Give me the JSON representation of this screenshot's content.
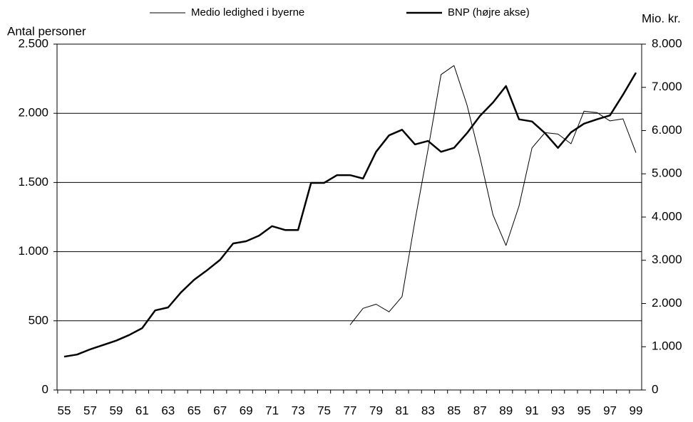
{
  "chart_data": {
    "type": "line",
    "y_label": "Antal personer",
    "y2_label": "Mio. kr.",
    "categories": [
      "55",
      null,
      "57",
      null,
      "59",
      null,
      "61",
      null,
      "63",
      null,
      "65",
      null,
      "67",
      null,
      "69",
      null,
      "71",
      null,
      "73",
      null,
      "75",
      null,
      "77",
      null,
      "79",
      null,
      "81",
      null,
      "83",
      null,
      "85",
      null,
      "87",
      null,
      "89",
      null,
      "91",
      null,
      "93",
      null,
      "95",
      null,
      "97",
      null,
      "99"
    ],
    "series": [
      {
        "name": "Medio ledighed i byerne",
        "color": "#000000",
        "width": 1,
        "values": [
          null,
          null,
          null,
          null,
          null,
          null,
          null,
          null,
          null,
          null,
          null,
          null,
          null,
          null,
          null,
          null,
          null,
          null,
          null,
          null,
          null,
          null,
          470,
          590,
          620,
          565,
          675,
          1225,
          1740,
          2280,
          2345,
          2060,
          1680,
          1265,
          1045,
          1330,
          1750,
          1860,
          1850,
          1780,
          2015,
          2005,
          1945,
          1960,
          1715
        ]
      },
      {
        "name": "BNP (højre akse)",
        "color": "#000000",
        "width": 2.5,
        "axis": "y2",
        "values": [
          770,
          820,
          940,
          1040,
          1140,
          1270,
          1430,
          1840,
          1910,
          2260,
          2550,
          2770,
          3010,
          3390,
          3440,
          3570,
          3790,
          3700,
          3700,
          4790,
          4790,
          4970,
          4970,
          4890,
          5510,
          5890,
          6020,
          5680,
          5760,
          5510,
          5600,
          5940,
          6340,
          6650,
          7030,
          6260,
          6210,
          5940,
          5600,
          5960,
          6160,
          6260,
          6350,
          6830,
          7340
        ]
      }
    ],
    "ylim": [
      0,
      2500
    ],
    "yticks": [
      0,
      500,
      {
        "value": 1000,
        "label": "1.000"
      },
      {
        "value": 1500,
        "label": "1.500"
      },
      {
        "value": 2000,
        "label": "2.000"
      },
      {
        "value": 2500,
        "label": "2.500"
      }
    ],
    "y2lim": [
      0,
      8000
    ],
    "y2ticks": [
      0,
      {
        "value": 1000,
        "label": "1.000"
      },
      {
        "value": 2000,
        "label": "2.000"
      },
      {
        "value": 3000,
        "label": "3.000"
      },
      {
        "value": 4000,
        "label": "4.000"
      },
      {
        "value": 5000,
        "label": "5.000"
      },
      {
        "value": 6000,
        "label": "6.000"
      },
      {
        "value": 7000,
        "label": "7.000"
      },
      {
        "value": 8000,
        "label": "8.000"
      }
    ],
    "grid": true
  }
}
